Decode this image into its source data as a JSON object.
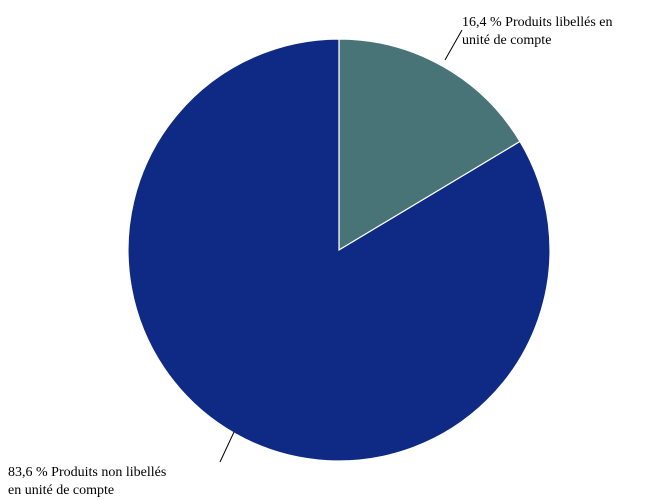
{
  "chart_data": {
    "type": "pie",
    "title": "",
    "slices": [
      {
        "label_line1": "16,4 % Produits libellés en",
        "label_line2": "unité de compte",
        "value": 16.4,
        "color": "#487377"
      },
      {
        "label_line1": "83,6 % Produits non libellés",
        "label_line2": "en unité de compte",
        "value": 83.6,
        "color": "#0e2a84"
      }
    ],
    "start_angle": "12 o'clock",
    "direction": "clockwise",
    "slice_border_color": "#ffffff"
  }
}
